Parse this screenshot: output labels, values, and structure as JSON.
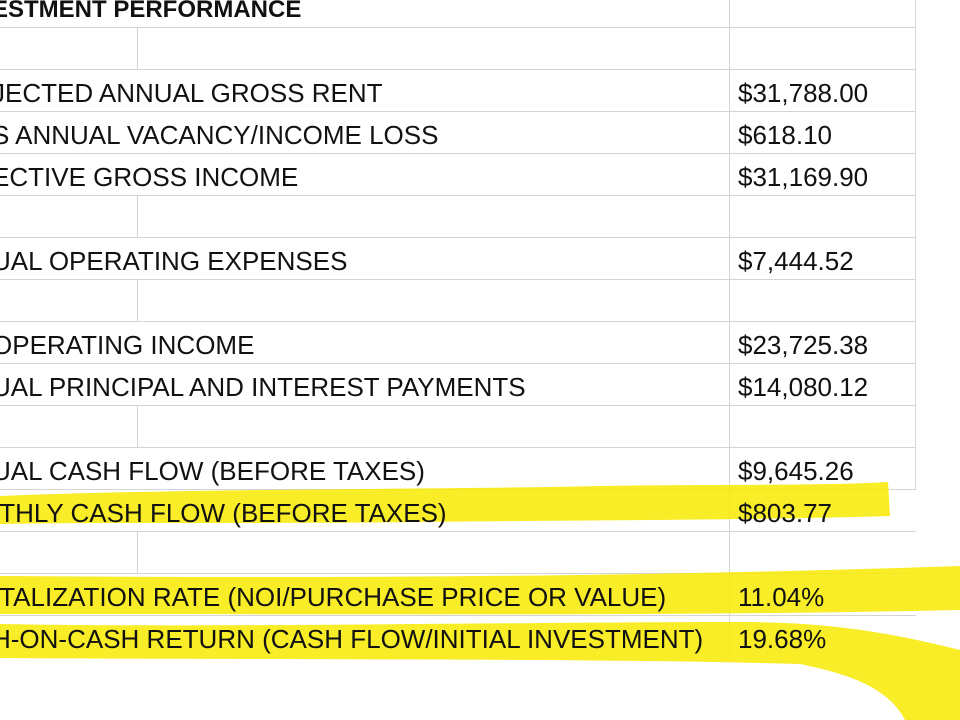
{
  "sheet": {
    "title": "ESTMENT PERFORMANCE",
    "rows": [
      {
        "label": "JECTED ANNUAL GROSS RENT",
        "value": "$31,788.00"
      },
      {
        "label": "S ANNUAL VACANCY/INCOME LOSS",
        "value": "$618.10"
      },
      {
        "label": "ECTIVE GROSS INCOME",
        "value": "$31,169.90"
      },
      {
        "label": "UAL OPERATING EXPENSES",
        "value": "$7,444.52"
      },
      {
        "label": " OPERATING INCOME",
        "value": "$23,725.38"
      },
      {
        "label": "UAL PRINCIPAL AND INTEREST PAYMENTS",
        "value": "$14,080.12"
      },
      {
        "label": "UAL CASH FLOW (BEFORE TAXES)",
        "value": "$9,645.26"
      },
      {
        "label": "ITHLY CASH FLOW (BEFORE TAXES)",
        "value": "$803.77"
      },
      {
        "label": "ITALIZATION RATE (NOI/PURCHASE PRICE OR VALUE)",
        "value": "11.04%"
      },
      {
        "label": "H-ON-CASH RETURN (CASH FLOW/INITIAL INVESTMENT)",
        "value": "19.68%"
      }
    ]
  },
  "highlight_color": "#f7ea00"
}
